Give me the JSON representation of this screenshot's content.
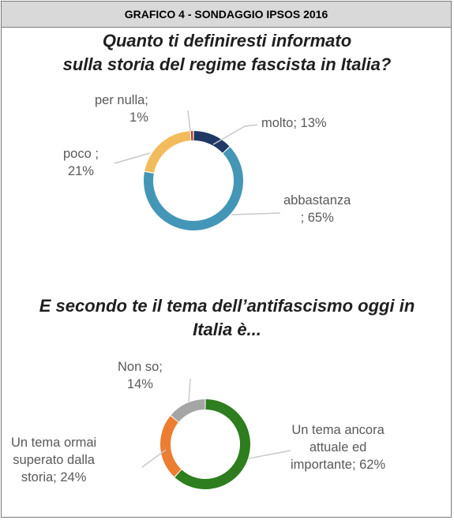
{
  "header": {
    "title": "GRAFICO 4 - SONDAGGIO IPSOS 2016"
  },
  "chart_data": [
    {
      "type": "pie",
      "title": "Quanto ti definiresti informato sulla storia del regime fascista in Italia?",
      "title_lines": [
        "Quanto ti definiresti informato",
        "sulla storia del regime fascista in Italia?"
      ],
      "slices": [
        {
          "label": "molto",
          "value": 13,
          "color": "#1f3864"
        },
        {
          "label": "abbastanza",
          "value": 65,
          "color": "#4496b7"
        },
        {
          "label": "poco",
          "value": 21,
          "color": "#f2bb5c"
        },
        {
          "label": "per nulla",
          "value": 1,
          "color": "#c0392b"
        }
      ],
      "data_labels": {
        "molto": "molto; 13%",
        "abbastanza": "abbastanza\n; 65%",
        "poco": "poco ;\n21%",
        "per_nulla": "per nulla;\n1%"
      }
    },
    {
      "type": "pie",
      "title": "E secondo te il tema dell’antifascismo oggi in Italia è...",
      "title_lines": [
        "E secondo te il tema dell’antifascismo oggi in",
        "Italia è..."
      ],
      "slices": [
        {
          "label": "Un tema ancora attuale ed importante",
          "value": 62,
          "color": "#2e7d1e"
        },
        {
          "label": "Un tema ormai superato dalla storia",
          "value": 24,
          "color": "#ed7d31"
        },
        {
          "label": "Non so",
          "value": 14,
          "color": "#a5a5a5"
        }
      ],
      "data_labels": {
        "attuale": "Un tema ancora\nattuale ed\nimportante; 62%",
        "superato": "Un tema ormai\nsuperato dalla\nstoria; 24%",
        "non_so": "Non so;\n14%"
      }
    }
  ]
}
